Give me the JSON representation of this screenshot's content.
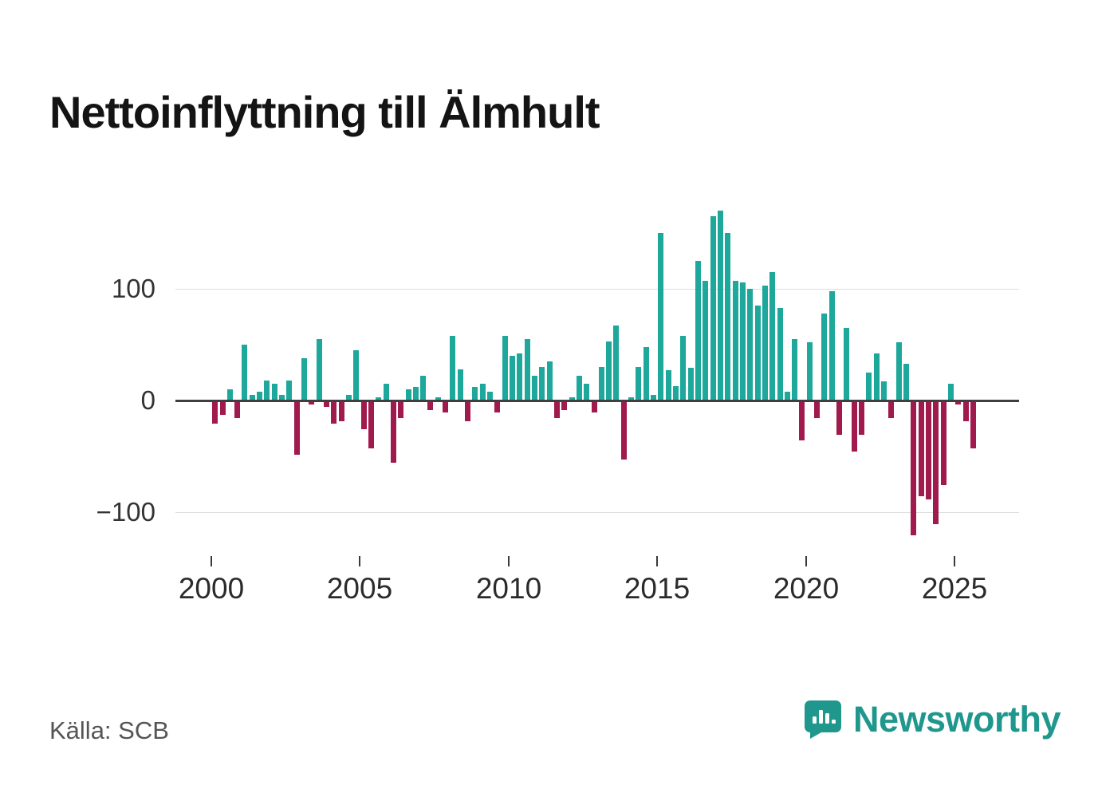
{
  "chart_data": {
    "type": "bar",
    "title": "Nettoinflyttning till Älmhult",
    "xlabel": "",
    "ylabel": "",
    "legend": "none",
    "grid": "horizontal",
    "ylim": [
      -140,
      190
    ],
    "bar_color_positive": "#1ea79b",
    "bar_color_negative": "#a01a4e",
    "y_ticks": [
      {
        "value": 100,
        "label": "100"
      },
      {
        "value": 0,
        "label": "0"
      },
      {
        "value": -100,
        "label": "−100"
      }
    ],
    "x_ticks": [
      {
        "year": 2000,
        "label": "2000"
      },
      {
        "year": 2005,
        "label": "2005"
      },
      {
        "year": 2010,
        "label": "2010"
      },
      {
        "year": 2015,
        "label": "2015"
      },
      {
        "year": 2020,
        "label": "2020"
      },
      {
        "year": 2025,
        "label": "2025"
      }
    ],
    "quarters": [
      "2000K1",
      "2000K2",
      "2000K3",
      "2000K4",
      "2001K1",
      "2001K2",
      "2001K3",
      "2001K4",
      "2002K1",
      "2002K2",
      "2002K3",
      "2002K4",
      "2003K1",
      "2003K2",
      "2003K3",
      "2003K4",
      "2004K1",
      "2004K2",
      "2004K3",
      "2004K4",
      "2005K1",
      "2005K2",
      "2005K3",
      "2005K4",
      "2006K1",
      "2006K2",
      "2006K3",
      "2006K4",
      "2007K1",
      "2007K2",
      "2007K3",
      "2007K4",
      "2008K1",
      "2008K2",
      "2008K3",
      "2008K4",
      "2009K1",
      "2009K2",
      "2009K3",
      "2009K4",
      "2010K1",
      "2010K2",
      "2010K3",
      "2010K4",
      "2011K1",
      "2011K2",
      "2011K3",
      "2011K4",
      "2012K1",
      "2012K2",
      "2012K3",
      "2012K4",
      "2013K1",
      "2013K2",
      "2013K3",
      "2013K4",
      "2014K1",
      "2014K2",
      "2014K3",
      "2014K4",
      "2015K1",
      "2015K2",
      "2015K3",
      "2015K4",
      "2016K1",
      "2016K2",
      "2016K3",
      "2016K4",
      "2017K1",
      "2017K2",
      "2017K3",
      "2017K4",
      "2018K1",
      "2018K2",
      "2018K3",
      "2018K4",
      "2019K1",
      "2019K2",
      "2019K3",
      "2019K4",
      "2020K1",
      "2020K2",
      "2020K3",
      "2020K4",
      "2021K1",
      "2021K2",
      "2021K3",
      "2021K4",
      "2022K1",
      "2022K2",
      "2022K3",
      "2022K4",
      "2023K1",
      "2023K2",
      "2023K3",
      "2023K4",
      "2024K1",
      "2024K2",
      "2024K3",
      "2024K4",
      "2025K1",
      "2025K2",
      "2025K3"
    ],
    "values": [
      -20,
      -12,
      10,
      -15,
      50,
      5,
      8,
      18,
      15,
      5,
      18,
      -48,
      38,
      -3,
      55,
      -5,
      -20,
      -18,
      5,
      45,
      -25,
      -42,
      3,
      15,
      -55,
      -15,
      10,
      12,
      22,
      -8,
      3,
      -10,
      58,
      28,
      -18,
      12,
      15,
      8,
      -10,
      58,
      40,
      42,
      55,
      22,
      30,
      35,
      -15,
      -8,
      3,
      22,
      15,
      -10,
      30,
      53,
      67,
      -52,
      3,
      30,
      48,
      5,
      150,
      27,
      13,
      58,
      29,
      125,
      107,
      165,
      170,
      150,
      107,
      106,
      100,
      85,
      103,
      115,
      83,
      8,
      55,
      -35,
      52,
      -15,
      78,
      98,
      -30,
      65,
      -45,
      -30,
      25,
      42,
      17,
      -15,
      52,
      33,
      -120,
      -85,
      -88,
      -110,
      -75,
      15,
      -3,
      -18,
      -42
    ]
  },
  "source": {
    "label": "Källa: SCB"
  },
  "branding": {
    "wordmark": "Newsworthy",
    "color": "#1f978d",
    "icon": "newsworthy-speech-bubble-bar-chart-icon"
  }
}
